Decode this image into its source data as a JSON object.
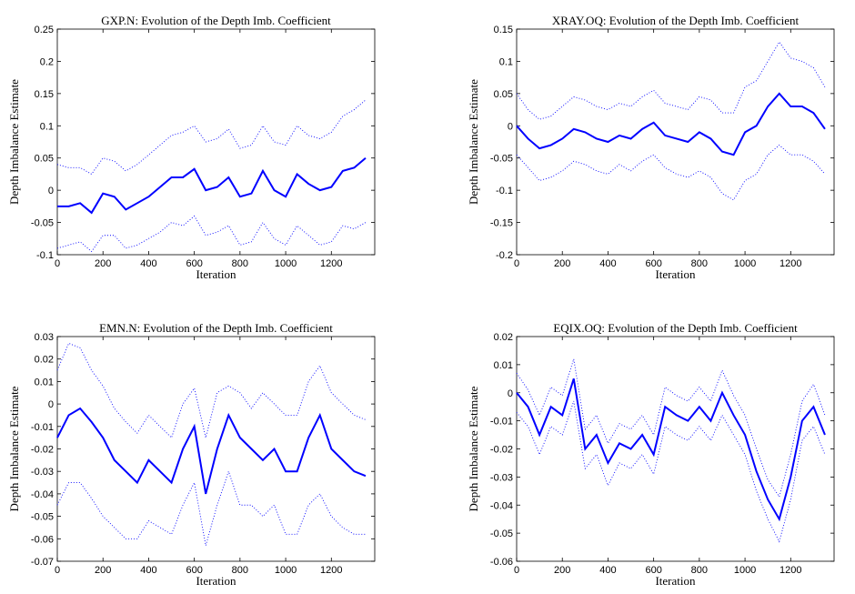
{
  "chart_data": [
    {
      "type": "line",
      "title": "GXP.N: Evolution of the Depth Imb. Coefficient",
      "xlabel": "Iteration",
      "ylabel": "Depth Imbalance Estimate",
      "x": [
        0,
        50,
        100,
        150,
        200,
        250,
        300,
        350,
        400,
        450,
        500,
        550,
        600,
        650,
        700,
        750,
        800,
        850,
        900,
        950,
        1000,
        1050,
        1100,
        1150,
        1200,
        1250,
        1300,
        1350
      ],
      "xlim": [
        0,
        1390
      ],
      "xticks": [
        0,
        200,
        400,
        600,
        800,
        1000,
        1200
      ],
      "ylim": [
        -0.1,
        0.25
      ],
      "yticks": [
        -0.1,
        -0.05,
        0,
        0.05,
        0.1,
        0.15,
        0.2,
        0.25
      ],
      "series": [
        {
          "color": "#0000ff",
          "dash": "solid",
          "values": [
            -0.025,
            -0.025,
            -0.02,
            -0.035,
            -0.005,
            -0.01,
            -0.03,
            -0.02,
            -0.01,
            0.005,
            0.02,
            0.02,
            0.033,
            0.0,
            0.005,
            0.02,
            -0.01,
            -0.005,
            0.03,
            0.0,
            -0.01,
            0.025,
            0.01,
            0.0,
            0.005,
            0.03,
            0.035,
            0.05
          ]
        },
        {
          "color": "#0000ff",
          "dash": "dotted",
          "values": [
            0.04,
            0.035,
            0.035,
            0.025,
            0.05,
            0.045,
            0.03,
            0.04,
            0.055,
            0.07,
            0.085,
            0.09,
            0.1,
            0.075,
            0.08,
            0.095,
            0.065,
            0.07,
            0.1,
            0.075,
            0.07,
            0.1,
            0.085,
            0.08,
            0.09,
            0.115,
            0.125,
            0.14
          ]
        },
        {
          "color": "#0000ff",
          "dash": "dotted",
          "values": [
            -0.09,
            -0.085,
            -0.08,
            -0.095,
            -0.07,
            -0.07,
            -0.09,
            -0.085,
            -0.075,
            -0.065,
            -0.05,
            -0.055,
            -0.04,
            -0.07,
            -0.065,
            -0.055,
            -0.085,
            -0.08,
            -0.05,
            -0.075,
            -0.085,
            -0.055,
            -0.07,
            -0.085,
            -0.08,
            -0.055,
            -0.06,
            -0.05
          ]
        }
      ]
    },
    {
      "type": "line",
      "title": "XRAY.OQ: Evolution of the Depth Imb. Coefficient",
      "xlabel": "Iteration",
      "ylabel": "Depth Imbalance Estimate",
      "x": [
        0,
        50,
        100,
        150,
        200,
        250,
        300,
        350,
        400,
        450,
        500,
        550,
        600,
        650,
        700,
        750,
        800,
        850,
        900,
        950,
        1000,
        1050,
        1100,
        1150,
        1200,
        1250,
        1300,
        1350
      ],
      "xlim": [
        0,
        1390
      ],
      "xticks": [
        0,
        200,
        400,
        600,
        800,
        1000,
        1200
      ],
      "ylim": [
        -0.2,
        0.15
      ],
      "yticks": [
        -0.2,
        -0.15,
        -0.1,
        -0.05,
        0,
        0.05,
        0.1,
        0.15
      ],
      "series": [
        {
          "color": "#0000ff",
          "dash": "solid",
          "values": [
            0,
            -0.02,
            -0.035,
            -0.03,
            -0.02,
            -0.005,
            -0.01,
            -0.02,
            -0.025,
            -0.015,
            -0.02,
            -0.005,
            0.005,
            -0.015,
            -0.02,
            -0.025,
            -0.01,
            -0.02,
            -0.04,
            -0.045,
            -0.01,
            0.0,
            0.03,
            0.05,
            0.03,
            0.03,
            0.02,
            -0.005
          ]
        },
        {
          "color": "#0000ff",
          "dash": "dotted",
          "values": [
            0.05,
            0.025,
            0.01,
            0.015,
            0.03,
            0.045,
            0.04,
            0.03,
            0.025,
            0.035,
            0.03,
            0.045,
            0.055,
            0.035,
            0.03,
            0.025,
            0.045,
            0.04,
            0.02,
            0.02,
            0.06,
            0.07,
            0.1,
            0.13,
            0.105,
            0.1,
            0.09,
            0.06
          ]
        },
        {
          "color": "#0000ff",
          "dash": "dotted",
          "values": [
            -0.045,
            -0.065,
            -0.085,
            -0.08,
            -0.07,
            -0.055,
            -0.06,
            -0.07,
            -0.075,
            -0.06,
            -0.07,
            -0.055,
            -0.045,
            -0.065,
            -0.075,
            -0.08,
            -0.07,
            -0.08,
            -0.105,
            -0.115,
            -0.085,
            -0.075,
            -0.045,
            -0.03,
            -0.045,
            -0.045,
            -0.055,
            -0.075
          ]
        }
      ]
    },
    {
      "type": "line",
      "title": "EMN.N: Evolution of the Depth Imb. Coefficient",
      "xlabel": "Iteration",
      "ylabel": "Depth Imbalance Estimate",
      "x": [
        0,
        50,
        100,
        150,
        200,
        250,
        300,
        350,
        400,
        450,
        500,
        550,
        600,
        650,
        700,
        750,
        800,
        850,
        900,
        950,
        1000,
        1050,
        1100,
        1150,
        1200,
        1250,
        1300,
        1350
      ],
      "xlim": [
        0,
        1390
      ],
      "xticks": [
        0,
        200,
        400,
        600,
        800,
        1000,
        1200
      ],
      "ylim": [
        -0.07,
        0.03
      ],
      "yticks": [
        -0.07,
        -0.06,
        -0.05,
        -0.04,
        -0.03,
        -0.02,
        -0.01,
        0,
        0.01,
        0.02,
        0.03
      ],
      "series": [
        {
          "color": "#0000ff",
          "dash": "solid",
          "values": [
            -0.015,
            -0.005,
            -0.002,
            -0.008,
            -0.015,
            -0.025,
            -0.03,
            -0.035,
            -0.025,
            -0.03,
            -0.035,
            -0.02,
            -0.01,
            -0.04,
            -0.02,
            -0.005,
            -0.015,
            -0.02,
            -0.025,
            -0.02,
            -0.03,
            -0.03,
            -0.015,
            -0.005,
            -0.02,
            -0.025,
            -0.03,
            -0.032
          ]
        },
        {
          "color": "#0000ff",
          "dash": "dotted",
          "values": [
            0.015,
            0.027,
            0.025,
            0.015,
            0.008,
            -0.002,
            -0.008,
            -0.013,
            -0.005,
            -0.01,
            -0.015,
            0.0,
            0.007,
            -0.015,
            0.005,
            0.008,
            0.005,
            -0.002,
            0.005,
            0.0,
            -0.005,
            -0.005,
            0.01,
            0.017,
            0.005,
            0.0,
            -0.005,
            -0.007
          ]
        },
        {
          "color": "#0000ff",
          "dash": "dotted",
          "values": [
            -0.045,
            -0.035,
            -0.035,
            -0.042,
            -0.05,
            -0.055,
            -0.06,
            -0.06,
            -0.052,
            -0.055,
            -0.058,
            -0.045,
            -0.035,
            -0.063,
            -0.045,
            -0.03,
            -0.045,
            -0.045,
            -0.05,
            -0.045,
            -0.058,
            -0.058,
            -0.045,
            -0.04,
            -0.05,
            -0.055,
            -0.058,
            -0.058
          ]
        }
      ]
    },
    {
      "type": "line",
      "title": "EQIX.OQ: Evolution of the Depth Imb. Coefficient",
      "xlabel": "Iteration",
      "ylabel": "Depth Imbalance Estimate",
      "x": [
        0,
        50,
        100,
        150,
        200,
        250,
        300,
        350,
        400,
        450,
        500,
        550,
        600,
        650,
        700,
        750,
        800,
        850,
        900,
        950,
        1000,
        1050,
        1100,
        1150,
        1200,
        1250,
        1300,
        1350
      ],
      "xlim": [
        0,
        1390
      ],
      "xticks": [
        0,
        200,
        400,
        600,
        800,
        1000,
        1200
      ],
      "ylim": [
        -0.06,
        0.02
      ],
      "yticks": [
        -0.06,
        -0.05,
        -0.04,
        -0.03,
        -0.02,
        -0.01,
        0,
        0.01,
        0.02
      ],
      "series": [
        {
          "color": "#0000ff",
          "dash": "solid",
          "values": [
            0,
            -0.005,
            -0.015,
            -0.005,
            -0.008,
            0.005,
            -0.02,
            -0.015,
            -0.025,
            -0.018,
            -0.02,
            -0.015,
            -0.022,
            -0.005,
            -0.008,
            -0.01,
            -0.005,
            -0.01,
            0.0,
            -0.008,
            -0.015,
            -0.028,
            -0.038,
            -0.045,
            -0.03,
            -0.01,
            -0.005,
            -0.015
          ]
        },
        {
          "color": "#0000ff",
          "dash": "dotted",
          "values": [
            0.007,
            0.001,
            -0.008,
            0.002,
            -0.001,
            0.012,
            -0.013,
            -0.008,
            -0.018,
            -0.011,
            -0.013,
            -0.008,
            -0.015,
            0.002,
            -0.001,
            -0.003,
            0.002,
            -0.003,
            0.008,
            -0.001,
            -0.008,
            -0.02,
            -0.031,
            -0.037,
            -0.022,
            -0.003,
            0.003,
            -0.008
          ]
        },
        {
          "color": "#0000ff",
          "dash": "dotted",
          "values": [
            -0.007,
            -0.012,
            -0.022,
            -0.012,
            -0.015,
            -0.003,
            -0.027,
            -0.022,
            -0.033,
            -0.025,
            -0.027,
            -0.022,
            -0.029,
            -0.012,
            -0.015,
            -0.017,
            -0.012,
            -0.017,
            -0.008,
            -0.015,
            -0.022,
            -0.035,
            -0.045,
            -0.053,
            -0.038,
            -0.017,
            -0.012,
            -0.022
          ]
        }
      ]
    }
  ]
}
